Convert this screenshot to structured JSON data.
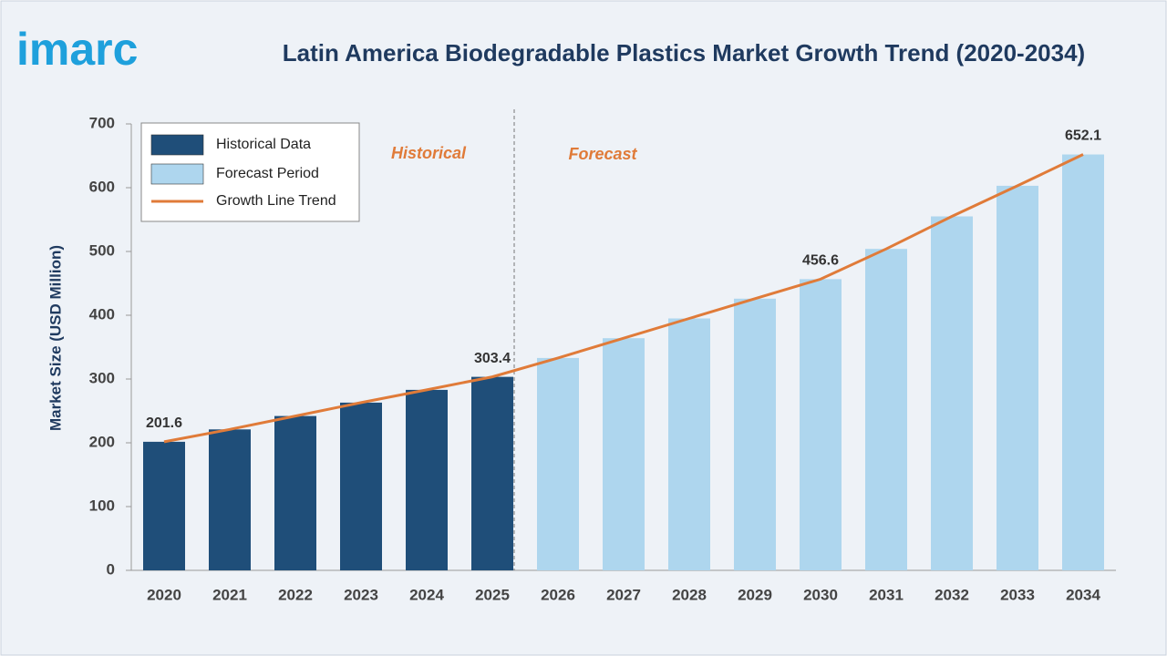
{
  "logo": "imarc",
  "chart_data": {
    "type": "bar",
    "title": "Latin America Biodegradable Plastics Market Growth Trend (2020-2034)",
    "y_label": "Market Size (USD Million)",
    "categories": [
      "2020",
      "2021",
      "2022",
      "2023",
      "2024",
      "2025",
      "2026",
      "2027",
      "2028",
      "2029",
      "2030",
      "2031",
      "2032",
      "2033",
      "2034"
    ],
    "series": [
      {
        "name": "Historical Data",
        "color": "#1f4e79",
        "values": [
          201.6,
          221,
          242,
          263,
          283,
          303.4,
          null,
          null,
          null,
          null,
          null,
          null,
          null,
          null,
          null
        ],
        "value_labels": [
          "201.6",
          null,
          null,
          null,
          null,
          "303.4",
          null,
          null,
          null,
          null,
          null,
          null,
          null,
          null,
          null
        ]
      },
      {
        "name": "Forecast Period",
        "color": "#aed6ee",
        "values": [
          null,
          null,
          null,
          null,
          null,
          null,
          333,
          364,
          395,
          426,
          456.6,
          504,
          555,
          603,
          652.1
        ],
        "value_labels": [
          null,
          null,
          null,
          null,
          null,
          null,
          null,
          null,
          null,
          null,
          "456.6",
          null,
          null,
          null,
          "652.1"
        ]
      }
    ],
    "trend_line": {
      "name": "Growth Line Trend",
      "color": "#e07b39"
    },
    "annotations": [
      "Historical",
      "Forecast"
    ],
    "ylim": [
      0,
      700
    ],
    "yticks": [
      0,
      100,
      200,
      300,
      400,
      500,
      600,
      700
    ]
  }
}
